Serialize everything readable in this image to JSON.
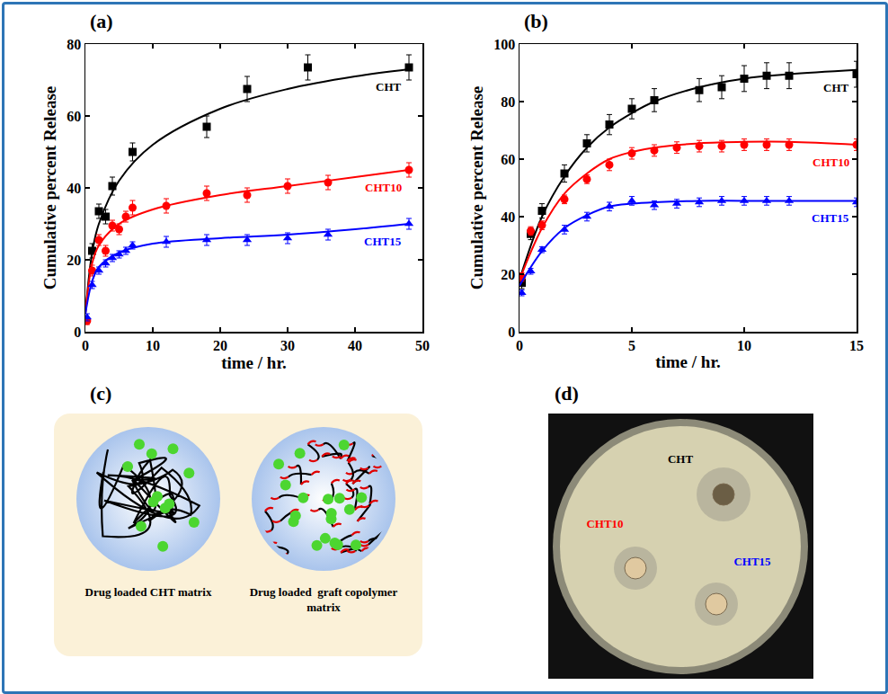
{
  "chart_data": [
    {
      "type": "scatter",
      "panel": "(a)",
      "x_label": "time / hr.",
      "y_label": "Cumulative percent Release",
      "xlim": [
        0,
        50
      ],
      "xticks": [
        0,
        10,
        20,
        30,
        40,
        50
      ],
      "ylim": [
        0,
        80
      ],
      "yticks": [
        0,
        20,
        40,
        60,
        80
      ],
      "grid": false,
      "series": [
        {
          "name": "CHT",
          "color": "#000000",
          "marker": "square",
          "x": [
            1,
            2,
            3,
            4,
            7,
            18,
            24,
            33,
            48
          ],
          "values": [
            22.5,
            33.5,
            32,
            40.5,
            50,
            57,
            67.5,
            73.5,
            73.5
          ],
          "errors": [
            2,
            2,
            2,
            2.5,
            2.5,
            3,
            3.5,
            3.5,
            3.5
          ],
          "fit_x": [
            0,
            1,
            2,
            5,
            10,
            20,
            30,
            40,
            48
          ],
          "fit_values": [
            5,
            22,
            30,
            42,
            52,
            62,
            67.5,
            71,
            73
          ]
        },
        {
          "name": "CHT10",
          "color": "#ff0000",
          "marker": "circle",
          "x": [
            0.25,
            1,
            2,
            3,
            4,
            5,
            6,
            7,
            12,
            18,
            24,
            30,
            36,
            48
          ],
          "values": [
            3,
            17,
            25.5,
            22.5,
            29.5,
            28.5,
            32,
            34.5,
            35,
            38.5,
            38,
            40.5,
            41.5,
            45
          ],
          "errors": [
            1,
            1.5,
            1.5,
            1.5,
            1.5,
            1.5,
            1.5,
            2,
            2,
            2,
            2,
            2,
            2,
            2
          ],
          "fit_x": [
            0,
            1,
            2,
            5,
            10,
            20,
            30,
            40,
            48
          ],
          "fit_values": [
            5,
            19,
            24,
            30,
            34,
            38,
            40.5,
            43,
            45
          ]
        },
        {
          "name": "CHT15",
          "color": "#0000ff",
          "marker": "triangle-up",
          "x": [
            0.25,
            1,
            2,
            3,
            4,
            5,
            6,
            7,
            12,
            18,
            24,
            30,
            36,
            48
          ],
          "values": [
            4,
            13,
            17,
            19,
            20.5,
            21.5,
            22.5,
            24,
            25,
            25.5,
            25.5,
            26,
            27,
            30
          ],
          "errors": [
            1,
            1,
            1,
            1,
            1,
            1,
            1,
            1,
            1.5,
            1.5,
            1.5,
            1.5,
            1.5,
            1.5
          ],
          "fit_x": [
            0,
            1,
            2,
            5,
            10,
            20,
            30,
            40,
            48
          ],
          "fit_values": [
            5,
            14,
            18,
            22,
            24.5,
            26,
            27,
            28.5,
            30
          ]
        }
      ]
    },
    {
      "type": "scatter",
      "panel": "(b)",
      "x_label": "time / hr.",
      "y_label": "Cumulative percent Release",
      "xlim": [
        0,
        15
      ],
      "xticks": [
        0,
        5,
        10,
        15
      ],
      "ylim": [
        0,
        100
      ],
      "yticks": [
        0,
        20,
        40,
        60,
        80,
        100
      ],
      "grid": false,
      "series": [
        {
          "name": "CHT",
          "color": "#000000",
          "marker": "square",
          "x": [
            0.1,
            0.5,
            1,
            2,
            3,
            4,
            5,
            6,
            8,
            9,
            10,
            11,
            12,
            15
          ],
          "values": [
            17,
            34,
            42,
            55,
            65.5,
            72,
            77.5,
            80.5,
            84,
            85,
            88,
            89,
            89,
            89.5
          ],
          "errors": [
            2,
            2,
            2.5,
            3,
            3,
            3.5,
            3.5,
            4,
            4,
            4,
            4.5,
            4.5,
            4.5,
            4.5
          ],
          "fit_x": [
            0,
            1,
            2,
            3,
            4,
            5,
            6,
            8,
            10,
            12,
            15
          ],
          "fit_values": [
            18,
            40,
            54,
            64,
            71,
            76,
            80,
            85,
            88,
            89.5,
            91
          ]
        },
        {
          "name": "CHT10",
          "color": "#ff0000",
          "marker": "circle",
          "x": [
            0.1,
            0.5,
            1,
            2,
            3,
            4,
            5,
            6,
            7,
            8,
            9,
            10,
            11,
            12,
            15
          ],
          "values": [
            19,
            35,
            37,
            46,
            53,
            58,
            62,
            63,
            64,
            64.5,
            64.5,
            65,
            65,
            65,
            65
          ],
          "errors": [
            1.5,
            1.5,
            1.5,
            1.5,
            1.5,
            2,
            2,
            2,
            2,
            2,
            2,
            2,
            2,
            2,
            2
          ],
          "fit_x": [
            0,
            1,
            2,
            3,
            4,
            5,
            6,
            8,
            10,
            12,
            15
          ],
          "fit_values": [
            18,
            36,
            48,
            55,
            60,
            62.5,
            64,
            65.5,
            66,
            66,
            65
          ]
        },
        {
          "name": "CHT15",
          "color": "#0000ff",
          "marker": "triangle-up",
          "x": [
            0.1,
            0.5,
            1,
            2,
            3,
            4,
            5,
            6,
            7,
            8,
            9,
            10,
            11,
            12,
            15
          ],
          "values": [
            13.5,
            21,
            28.5,
            35.5,
            40,
            43.5,
            45.5,
            44,
            44.5,
            45,
            45.5,
            45.5,
            45.5,
            45.5,
            45
          ],
          "errors": [
            1,
            1,
            1,
            1.5,
            1.5,
            1.5,
            1.5,
            1.5,
            1.5,
            1.5,
            1.5,
            1.5,
            1.5,
            1.5,
            1.5
          ],
          "fit_x": [
            0,
            1,
            2,
            3,
            4,
            5,
            6,
            8,
            10,
            15
          ],
          "fit_values": [
            16,
            28,
            36,
            40.5,
            43.5,
            44.5,
            45,
            45.5,
            45.5,
            45.5
          ]
        }
      ]
    }
  ],
  "diagram": {
    "panel": "(c)",
    "items": [
      {
        "label": "Drug loaded CHT matrix"
      },
      {
        "label": "Drug loaded  graft copolymer matrix"
      }
    ]
  },
  "photo": {
    "panel": "(d)",
    "labels": [
      {
        "text": "CHT",
        "color": "#000000"
      },
      {
        "text": "CHT10",
        "color": "#ff0000"
      },
      {
        "text": "CHT15",
        "color": "#0000ff"
      }
    ]
  }
}
